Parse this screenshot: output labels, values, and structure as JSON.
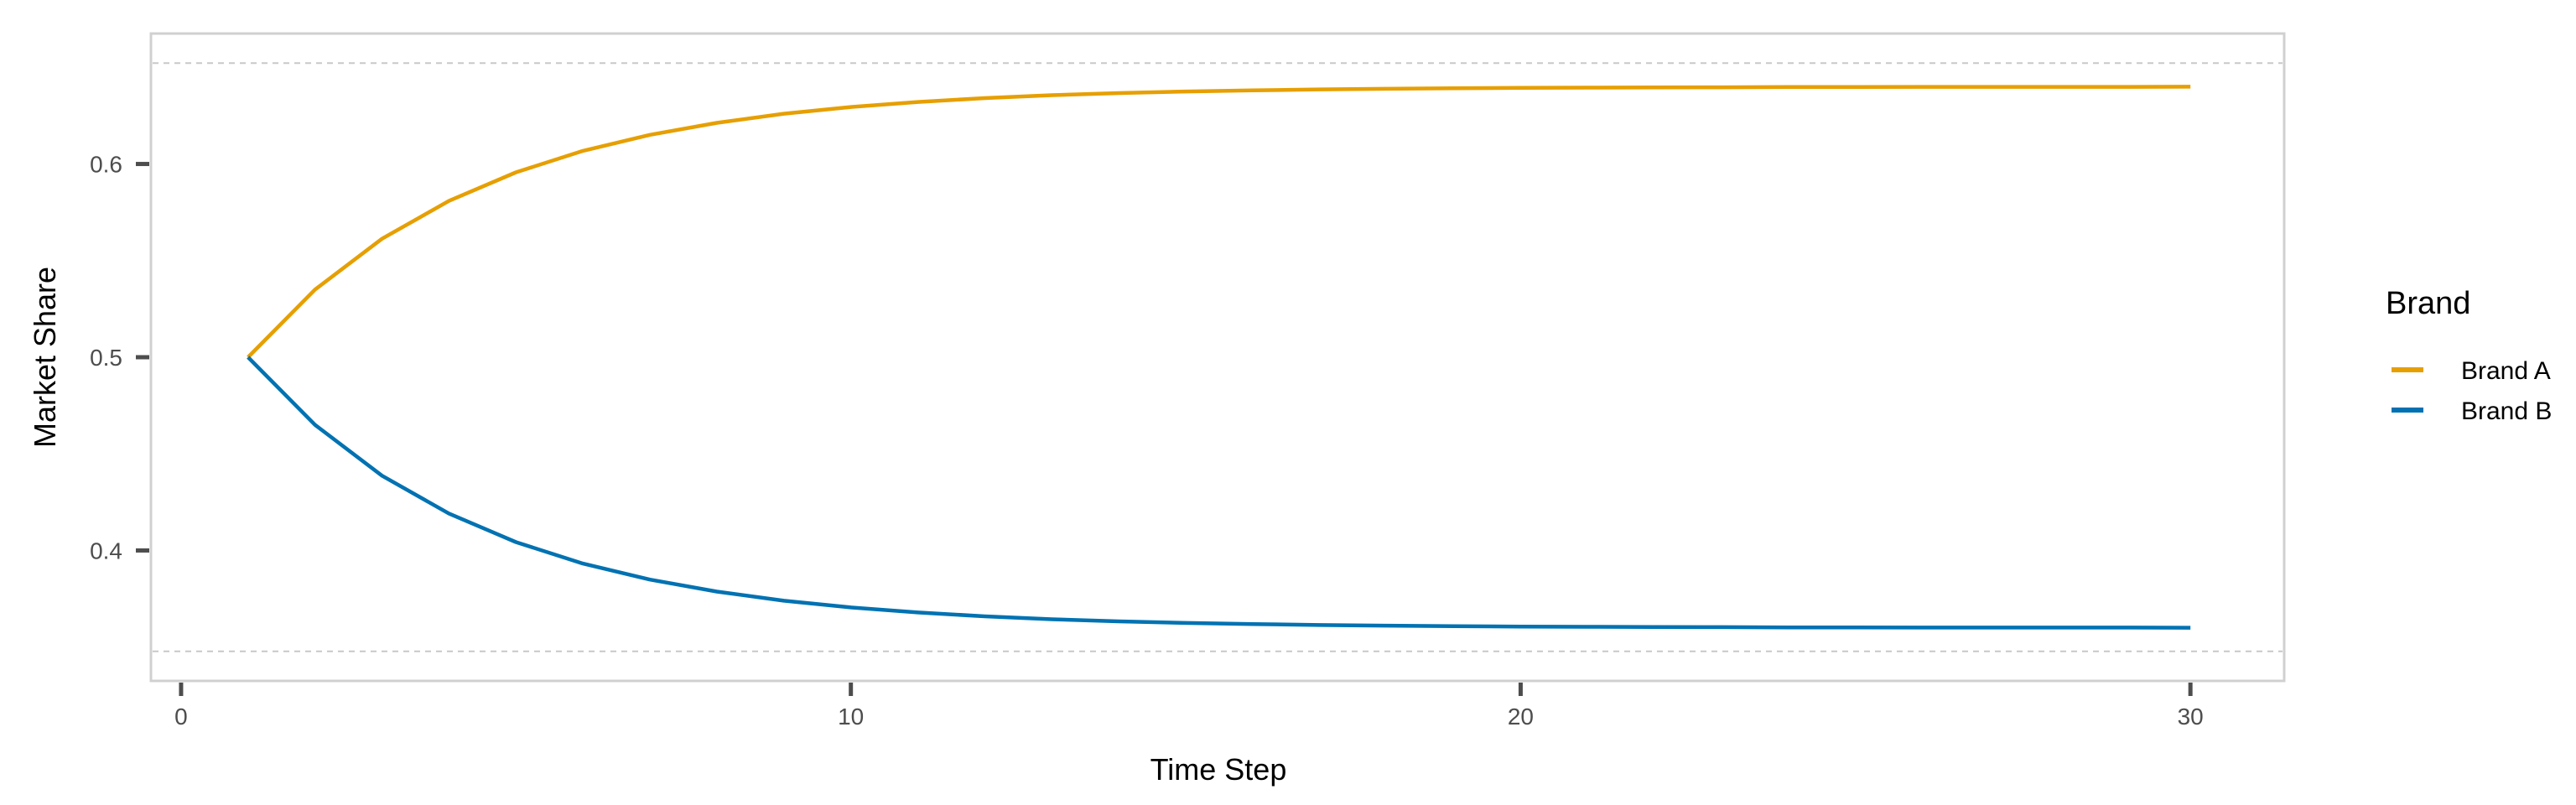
{
  "chart_data": {
    "type": "line",
    "xlabel": "Time Step",
    "ylabel": "Market Share",
    "xlim": [
      -0.45,
      31.4
    ],
    "ylim": [
      0.3325,
      0.6675
    ],
    "x_ticks": [
      0,
      10,
      20,
      30
    ],
    "y_ticks": [
      0.4,
      0.5,
      0.6
    ],
    "grid": false,
    "reference_lines": [
      0.6522,
      0.3478
    ],
    "legend": {
      "title": "Brand",
      "position": "right"
    },
    "x": [
      1,
      2,
      3,
      4,
      5,
      6,
      7,
      8,
      9,
      10,
      11,
      12,
      13,
      14,
      15,
      16,
      17,
      18,
      19,
      20,
      21,
      22,
      23,
      24,
      25,
      26,
      27,
      28,
      29,
      30
    ],
    "series": [
      {
        "name": "Brand A",
        "color": "#E69F00",
        "values": [
          0.5,
          0.535,
          0.5613,
          0.5809,
          0.5957,
          0.6068,
          0.6151,
          0.6213,
          0.626,
          0.6295,
          0.6321,
          0.6341,
          0.6356,
          0.6367,
          0.6375,
          0.6381,
          0.6386,
          0.6389,
          0.6392,
          0.6394,
          0.6395,
          0.6396,
          0.6397,
          0.6398,
          0.6398,
          0.6399,
          0.6399,
          0.6399,
          0.6399,
          0.64
        ]
      },
      {
        "name": "Brand B",
        "color": "#0072B2",
        "values": [
          0.5,
          0.465,
          0.4387,
          0.4191,
          0.4043,
          0.3932,
          0.3849,
          0.3787,
          0.374,
          0.3705,
          0.3679,
          0.3659,
          0.3644,
          0.3633,
          0.3625,
          0.3619,
          0.3614,
          0.3611,
          0.3608,
          0.3606,
          0.3605,
          0.3604,
          0.3603,
          0.3602,
          0.3602,
          0.3601,
          0.3601,
          0.3601,
          0.3601,
          0.36
        ]
      }
    ]
  }
}
